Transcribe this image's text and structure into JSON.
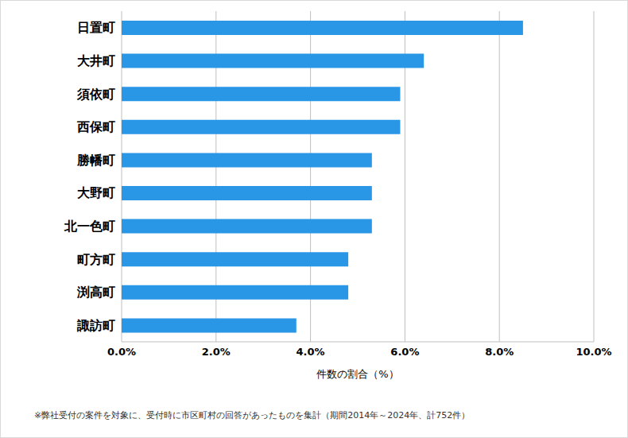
{
  "chart_data": {
    "type": "bar",
    "orientation": "horizontal",
    "categories": [
      "日置町",
      "大井町",
      "須依町",
      "西保町",
      "勝幡町",
      "大野町",
      "北一色町",
      "町方町",
      "渕高町",
      "諏訪町"
    ],
    "values": [
      8.5,
      6.4,
      5.9,
      5.9,
      5.3,
      5.3,
      5.3,
      4.8,
      4.8,
      3.7
    ],
    "color": "#2a96e6",
    "x_label": "件数の割合（%）",
    "xlim": [
      0,
      10
    ],
    "xticks": [
      {
        "value": 0,
        "label": "0.0%"
      },
      {
        "value": 2,
        "label": "2.0%"
      },
      {
        "value": 4,
        "label": "4.0%"
      },
      {
        "value": 6,
        "label": "6.0%"
      },
      {
        "value": 8,
        "label": "8.0%"
      },
      {
        "value": 10,
        "label": "10.0%"
      }
    ],
    "grid": true,
    "note": "※弊社受付の案件を対象に、受付時に市区町村の回答があったものを集計（期間2014年～2024年、計752件）"
  }
}
